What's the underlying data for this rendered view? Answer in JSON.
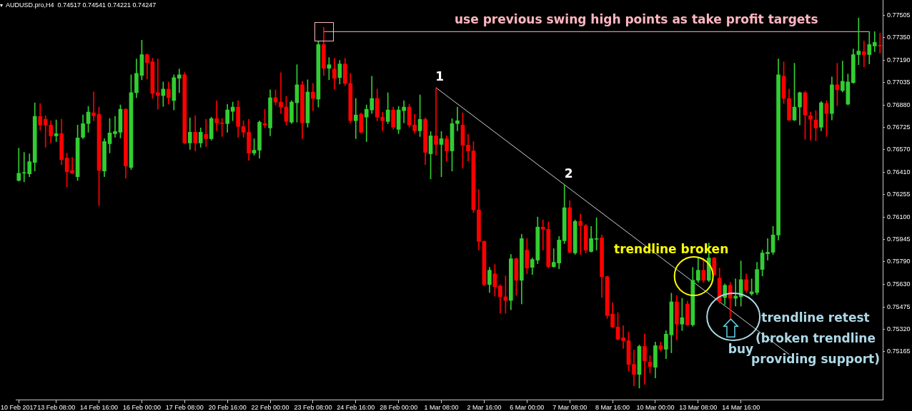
{
  "chart_data": {
    "type": "candlestick",
    "title": "AUDUSD.pro,H4  0.74517 0.74541 0.74221 0.74247",
    "categories": [
      "10 Feb 2017",
      null,
      null,
      null,
      null,
      null,
      null,
      "13 Feb 08:00",
      null,
      null,
      null,
      null,
      null,
      null,
      null,
      "14 Feb 16:00",
      null,
      null,
      null,
      null,
      null,
      null,
      null,
      "16 Feb 00:00",
      null,
      null,
      null,
      null,
      null,
      null,
      null,
      "17 Feb 08:00",
      null,
      null,
      null,
      null,
      null,
      null,
      null,
      "20 Feb 16:00",
      null,
      null,
      null,
      null,
      null,
      null,
      null,
      "22 Feb 00:00",
      null,
      null,
      null,
      null,
      null,
      null,
      null,
      "23 Feb 08:00",
      null,
      null,
      null,
      null,
      null,
      null,
      null,
      "24 Feb 16:00",
      null,
      null,
      null,
      null,
      null,
      null,
      null,
      "28 Feb 00:00",
      null,
      null,
      null,
      null,
      null,
      null,
      null,
      "1 Mar 08:00",
      null,
      null,
      null,
      null,
      null,
      null,
      null,
      "2 Mar 16:00",
      null,
      null,
      null,
      null,
      null,
      null,
      null,
      "6 Mar 00:00",
      null,
      null,
      null,
      null,
      null,
      null,
      null,
      "7 Mar 08:00",
      null,
      null,
      null,
      null,
      null,
      null,
      null,
      "8 Mar 16:00",
      null,
      null,
      null,
      null,
      null,
      null,
      null,
      "10 Mar 00:00",
      null,
      null,
      null,
      null,
      null,
      null,
      null,
      "13 Mar 08:00",
      null,
      null,
      null,
      null,
      null,
      null,
      null,
      "14 Mar 16:00",
      null,
      null,
      null,
      null,
      null,
      null,
      null,
      null,
      null,
      null,
      null,
      null,
      null,
      null,
      null,
      null,
      null,
      null,
      null,
      null,
      null,
      null,
      null,
      null,
      null,
      null
    ],
    "ohlc": [
      [
        0.76355,
        0.7658,
        0.7635,
        0.76405
      ],
      [
        0.76405,
        0.7655,
        0.76345,
        0.7641
      ],
      [
        0.764,
        0.7654,
        0.7638,
        0.76485
      ],
      [
        0.7648,
        0.76895,
        0.7642,
        0.768
      ],
      [
        0.768,
        0.7689,
        0.76705,
        0.7674
      ],
      [
        0.7678,
        0.76805,
        0.76585,
        0.7674
      ],
      [
        0.7674,
        0.7677,
        0.76615,
        0.76665
      ],
      [
        0.76665,
        0.76775,
        0.76625,
        0.7668
      ],
      [
        0.7668,
        0.7678,
        0.76465,
        0.765
      ],
      [
        0.7651,
        0.76545,
        0.7631,
        0.76415
      ],
      [
        0.76425,
        0.76515,
        0.764,
        0.76405
      ],
      [
        0.7638,
        0.7674,
        0.76355,
        0.7665
      ],
      [
        0.76655,
        0.7681,
        0.76645,
        0.7675
      ],
      [
        0.7675,
        0.7687,
        0.7669,
        0.7683
      ],
      [
        0.76825,
        0.7697,
        0.7677,
        0.76805
      ],
      [
        0.76815,
        0.76865,
        0.7618,
        0.76425
      ],
      [
        0.7642,
        0.76645,
        0.7638,
        0.76625
      ],
      [
        0.7661,
        0.76785,
        0.76545,
        0.76685
      ],
      [
        0.7668,
        0.768,
        0.76655,
        0.76695
      ],
      [
        0.7669,
        0.7688,
        0.7665,
        0.7685
      ],
      [
        0.7685,
        0.76855,
        0.7637,
        0.76455
      ],
      [
        0.76445,
        0.7709,
        0.7643,
        0.76965
      ],
      [
        0.76965,
        0.772,
        0.7693,
        0.771
      ],
      [
        0.77085,
        0.7733,
        0.77055,
        0.7723
      ],
      [
        0.7723,
        0.77235,
        0.7706,
        0.77175
      ],
      [
        0.7718,
        0.77205,
        0.76925,
        0.7696
      ],
      [
        0.76965,
        0.772,
        0.7685,
        0.76945
      ],
      [
        0.76945,
        0.7704,
        0.7687,
        0.7699
      ],
      [
        0.7699,
        0.7704,
        0.76885,
        0.7693
      ],
      [
        0.7691,
        0.7709,
        0.76845,
        0.7707
      ],
      [
        0.77065,
        0.7713,
        0.76965,
        0.7709
      ],
      [
        0.7709,
        0.77105,
        0.7661,
        0.76615
      ],
      [
        0.76615,
        0.7679,
        0.7657,
        0.7669
      ],
      [
        0.7669,
        0.76805,
        0.7656,
        0.76615
      ],
      [
        0.76615,
        0.7672,
        0.76585,
        0.7669
      ],
      [
        0.76675,
        0.7678,
        0.7659,
        0.76645
      ],
      [
        0.76645,
        0.76795,
        0.76635,
        0.76785
      ],
      [
        0.76785,
        0.7691,
        0.767,
        0.76755
      ],
      [
        0.76755,
        0.76785,
        0.7666,
        0.7675
      ],
      [
        0.7675,
        0.76885,
        0.7669,
        0.76845
      ],
      [
        0.76835,
        0.769,
        0.7677,
        0.76865
      ],
      [
        0.76865,
        0.7691,
        0.76655,
        0.7673
      ],
      [
        0.7673,
        0.7677,
        0.76655,
        0.7669
      ],
      [
        0.7669,
        0.7678,
        0.76495,
        0.76545
      ],
      [
        0.76545,
        0.76645,
        0.7653,
        0.76565
      ],
      [
        0.76565,
        0.7677,
        0.7651,
        0.7676
      ],
      [
        0.7675,
        0.7685,
        0.7672,
        0.7674
      ],
      [
        0.7672,
        0.76985,
        0.76665,
        0.7693
      ],
      [
        0.7693,
        0.76985,
        0.7688,
        0.769
      ],
      [
        0.769,
        0.77105,
        0.7682,
        0.76865
      ],
      [
        0.76865,
        0.7694,
        0.7674,
        0.76765
      ],
      [
        0.7676,
        0.7691,
        0.7675,
        0.769
      ],
      [
        0.76895,
        0.7716,
        0.7676,
        0.7702
      ],
      [
        0.7702,
        0.77045,
        0.76645,
        0.76755
      ],
      [
        0.76755,
        0.77055,
        0.76725,
        0.7697
      ],
      [
        0.7697,
        0.7703,
        0.7684,
        0.76925
      ],
      [
        0.7692,
        0.77325,
        0.76865,
        0.773
      ],
      [
        0.773,
        0.7742,
        0.77085,
        0.77135
      ],
      [
        0.77135,
        0.7721,
        0.77055,
        0.7716
      ],
      [
        0.7713,
        0.77205,
        0.7699,
        0.77065
      ],
      [
        0.7707,
        0.7719,
        0.77025,
        0.77165
      ],
      [
        0.77165,
        0.77205,
        0.77015,
        0.7703
      ],
      [
        0.7703,
        0.771,
        0.76755,
        0.7677
      ],
      [
        0.7677,
        0.76925,
        0.76645,
        0.7681
      ],
      [
        0.76815,
        0.76825,
        0.76685,
        0.7669
      ],
      [
        0.76795,
        0.7688,
        0.76625,
        0.7685
      ],
      [
        0.76845,
        0.7708,
        0.7682,
        0.76925
      ],
      [
        0.76925,
        0.7699,
        0.7677,
        0.76795
      ],
      [
        0.76795,
        0.7683,
        0.767,
        0.7677
      ],
      [
        0.76765,
        0.76965,
        0.7675,
        0.76845
      ],
      [
        0.76845,
        0.76865,
        0.7671,
        0.76725
      ],
      [
        0.7671,
        0.7687,
        0.7668,
        0.76845
      ],
      [
        0.7684,
        0.7691,
        0.76755,
        0.76865
      ],
      [
        0.76865,
        0.76885,
        0.76725,
        0.7674
      ],
      [
        0.7674,
        0.76815,
        0.76685,
        0.767
      ],
      [
        0.767,
        0.7695,
        0.7666,
        0.7678
      ],
      [
        0.7678,
        0.7679,
        0.76465,
        0.7655
      ],
      [
        0.7654,
        0.76695,
        0.76365,
        0.76665
      ],
      [
        0.76665,
        0.77,
        0.7653,
        0.76605
      ],
      [
        0.76605,
        0.76695,
        0.7638,
        0.76645
      ],
      [
        0.76645,
        0.76665,
        0.7649,
        0.7656
      ],
      [
        0.7656,
        0.76785,
        0.7642,
        0.7675
      ],
      [
        0.7675,
        0.76865,
        0.767,
        0.7677
      ],
      [
        0.7674,
        0.76825,
        0.7644,
        0.766
      ],
      [
        0.766,
        0.76675,
        0.7649,
        0.7656
      ],
      [
        0.7656,
        0.76625,
        0.7613,
        0.7615
      ],
      [
        0.7615,
        0.7629,
        0.7587,
        0.7593
      ],
      [
        0.7593,
        0.75935,
        0.7562,
        0.7563
      ],
      [
        0.7563,
        0.7575,
        0.75575,
        0.7573
      ],
      [
        0.75705,
        0.7577,
        0.7555,
        0.75615
      ],
      [
        0.7562,
        0.7563,
        0.7543,
        0.75545
      ],
      [
        0.75545,
        0.7569,
        0.7543,
        0.7552
      ],
      [
        0.7552,
        0.7584,
        0.75455,
        0.7581
      ],
      [
        0.7581,
        0.75815,
        0.75555,
        0.7566
      ],
      [
        0.7566,
        0.7598,
        0.75495,
        0.7595
      ],
      [
        0.7587,
        0.7595,
        0.75705,
        0.75745
      ],
      [
        0.7575,
        0.75815,
        0.757,
        0.75805
      ],
      [
        0.758,
        0.761,
        0.75775,
        0.7603
      ],
      [
        0.7603,
        0.7608,
        0.7587,
        0.76015
      ],
      [
        0.76015,
        0.76065,
        0.75745,
        0.75755
      ],
      [
        0.75755,
        0.7588,
        0.7575,
        0.75785
      ],
      [
        0.7578,
        0.75965,
        0.7574,
        0.7594
      ],
      [
        0.75935,
        0.76325,
        0.75915,
        0.76165
      ],
      [
        0.76165,
        0.76215,
        0.7585,
        0.75855
      ],
      [
        0.7585,
        0.7608,
        0.7584,
        0.7607
      ],
      [
        0.7607,
        0.7612,
        0.7584,
        0.7604
      ],
      [
        0.7604,
        0.7605,
        0.7585,
        0.7587
      ],
      [
        0.7586,
        0.76035,
        0.75855,
        0.7595
      ],
      [
        0.75945,
        0.76095,
        0.7587,
        0.7595
      ],
      [
        0.75955,
        0.75975,
        0.7554,
        0.75685
      ],
      [
        0.75685,
        0.7569,
        0.75395,
        0.75415
      ],
      [
        0.75425,
        0.75505,
        0.7533,
        0.75335
      ],
      [
        0.75335,
        0.75435,
        0.75245,
        0.7525
      ],
      [
        0.7526,
        0.75345,
        0.75185,
        0.7524
      ],
      [
        0.7524,
        0.753,
        0.7503,
        0.75075
      ],
      [
        0.75075,
        0.75175,
        0.74925,
        0.75005
      ],
      [
        0.75005,
        0.7521,
        0.7491,
        0.752
      ],
      [
        0.752,
        0.75285,
        0.74935,
        0.751
      ],
      [
        0.7509,
        0.75135,
        0.75015,
        0.7506
      ],
      [
        0.75055,
        0.7523,
        0.7498,
        0.75205
      ],
      [
        0.75205,
        0.7523,
        0.7517,
        0.7518
      ],
      [
        0.7518,
        0.7531,
        0.75115,
        0.75285
      ],
      [
        0.7528,
        0.7557,
        0.75155,
        0.7551
      ],
      [
        0.7551,
        0.75555,
        0.75245,
        0.75355
      ],
      [
        0.75355,
        0.75535,
        0.7531,
        0.754
      ],
      [
        0.75495,
        0.75515,
        0.75345,
        0.7535
      ],
      [
        0.7535,
        0.7575,
        0.7534,
        0.7566
      ],
      [
        0.7566,
        0.7582,
        0.75645,
        0.7573
      ],
      [
        0.7573,
        0.75815,
        0.75645,
        0.7566
      ],
      [
        0.7566,
        0.7592,
        0.7565,
        0.75815
      ],
      [
        0.75815,
        0.7582,
        0.75695,
        0.757
      ],
      [
        0.75675,
        0.75745,
        0.755,
        0.75515
      ],
      [
        0.7554,
        0.75635,
        0.7549,
        0.75625
      ],
      [
        0.75625,
        0.75645,
        0.75395,
        0.75535
      ],
      [
        0.75535,
        0.7567,
        0.7548,
        0.7555
      ],
      [
        0.75545,
        0.75795,
        0.7548,
        0.75665
      ],
      [
        0.75665,
        0.75705,
        0.75575,
        0.7559
      ],
      [
        0.75565,
        0.7567,
        0.75555,
        0.7558
      ],
      [
        0.75575,
        0.75785,
        0.7556,
        0.75735
      ],
      [
        0.75735,
        0.7587,
        0.7569,
        0.7585
      ],
      [
        0.75845,
        0.7595,
        0.758,
        0.75855
      ],
      [
        0.75855,
        0.76035,
        0.7584,
        0.75975
      ],
      [
        0.75975,
        0.772,
        0.7594,
        0.7709
      ],
      [
        0.7708,
        0.7718,
        0.7689,
        0.76925
      ],
      [
        0.76925,
        0.7699,
        0.7677,
        0.76775
      ],
      [
        0.76775,
        0.7717,
        0.7677,
        0.76865
      ],
      [
        0.76865,
        0.7697,
        0.7674,
        0.76965
      ],
      [
        0.76965,
        0.76975,
        0.7664,
        0.7681
      ],
      [
        0.76805,
        0.7683,
        0.76635,
        0.7678
      ],
      [
        0.76775,
        0.7684,
        0.7663,
        0.7672
      ],
      [
        0.76725,
        0.76905,
        0.767,
        0.76895
      ],
      [
        0.7689,
        0.7691,
        0.7666,
        0.7682
      ],
      [
        0.7682,
        0.77075,
        0.76775,
        0.7702
      ],
      [
        0.7702,
        0.7717,
        0.76875,
        0.76985
      ],
      [
        0.7698,
        0.77185,
        0.7697,
        0.77045
      ],
      [
        0.76885,
        0.77095,
        0.7688,
        0.7704
      ],
      [
        0.77035,
        0.7727,
        0.7703,
        0.7723
      ],
      [
        0.7723,
        0.77485,
        0.7716,
        0.77255
      ],
      [
        0.7725,
        0.77325,
        0.77145,
        0.7723
      ],
      [
        0.7723,
        0.7739,
        0.77165,
        0.773
      ],
      [
        0.7729,
        0.7739,
        0.7725,
        0.77315
      ],
      [
        0.77295,
        0.7738,
        0.7724,
        0.7729
      ]
    ],
    "colors": [
      "#32cd32",
      "#32cd32",
      "#32cd32",
      "#32cd32",
      "#ff0000",
      "#ff0000",
      "#ff0000",
      "#32cd32",
      "#ff0000",
      "#ff0000",
      "#ff0000",
      "#32cd32",
      "#32cd32",
      "#32cd32",
      "#ff0000",
      "#ff0000",
      "#32cd32",
      "#32cd32",
      "#32cd32",
      "#32cd32",
      "#ff0000",
      "#32cd32",
      "#32cd32",
      "#32cd32",
      "#ff0000",
      "#ff0000",
      "#ff0000",
      "#32cd32",
      "#ff0000",
      "#32cd32",
      "#32cd32",
      "#ff0000",
      "#32cd32",
      "#ff0000",
      "#32cd32",
      "#ff0000",
      "#32cd32",
      "#ff0000",
      "#ff0000",
      "#32cd32",
      "#32cd32",
      "#ff0000",
      "#ff0000",
      "#ff0000",
      "#32cd32",
      "#32cd32",
      "#ff0000",
      "#32cd32",
      "#ff0000",
      "#ff0000",
      "#ff0000",
      "#32cd32",
      "#32cd32",
      "#ff0000",
      "#32cd32",
      "#ff0000",
      "#32cd32",
      "#ff0000",
      "#32cd32",
      "#ff0000",
      "#32cd32",
      "#ff0000",
      "#ff0000",
      "#32cd32",
      "#ff0000",
      "#32cd32",
      "#32cd32",
      "#ff0000",
      "#ff0000",
      "#32cd32",
      "#ff0000",
      "#32cd32",
      "#32cd32",
      "#ff0000",
      "#ff0000",
      "#32cd32",
      "#ff0000",
      "#32cd32",
      "#ff0000",
      "#32cd32",
      "#ff0000",
      "#32cd32",
      "#32cd32",
      "#ff0000",
      "#ff0000",
      "#ff0000",
      "#ff0000",
      "#ff0000",
      "#32cd32",
      "#ff0000",
      "#ff0000",
      "#ff0000",
      "#32cd32",
      "#ff0000",
      "#32cd32",
      "#ff0000",
      "#32cd32",
      "#32cd32",
      "#ff0000",
      "#ff0000",
      "#32cd32",
      "#32cd32",
      "#32cd32",
      "#ff0000",
      "#32cd32",
      "#ff0000",
      "#ff0000",
      "#32cd32",
      "#32cd32",
      "#ff0000",
      "#ff0000",
      "#ff0000",
      "#ff0000",
      "#ff0000",
      "#ff0000",
      "#ff0000",
      "#32cd32",
      "#ff0000",
      "#ff0000",
      "#32cd32",
      "#ff0000",
      "#32cd32",
      "#32cd32",
      "#ff0000",
      "#32cd32",
      "#ff0000",
      "#32cd32",
      "#32cd32",
      "#ff0000",
      "#32cd32",
      "#ff0000",
      "#ff0000",
      "#32cd32",
      "#ff0000",
      "#32cd32",
      "#32cd32",
      "#ff0000",
      "#32cd32",
      "#32cd32",
      "#32cd32",
      "#32cd32",
      "#32cd32",
      "#32cd32",
      "#ff0000",
      "#ff0000",
      "#32cd32",
      "#32cd32",
      "#ff0000",
      "#ff0000",
      "#ff0000",
      "#32cd32",
      "#ff0000",
      "#32cd32",
      "#ff0000",
      "#32cd32",
      "#32cd32",
      "#32cd32",
      "#32cd32",
      "#ff0000",
      "#32cd32",
      "#32cd32",
      "#ff0000"
    ],
    "series": [
      {
        "type": "line",
        "color": "#ffb6c1",
        "values": [
          null,
          null,
          null,
          null,
          null,
          null,
          null,
          null,
          null,
          null,
          null,
          null,
          null,
          null,
          null,
          null,
          null,
          null,
          null,
          null,
          null,
          null,
          null,
          null,
          null,
          null,
          null,
          null,
          null,
          null,
          null,
          null,
          null,
          null,
          null,
          null,
          null,
          null,
          null,
          null,
          null,
          null,
          null,
          null,
          null,
          null,
          null,
          null,
          null,
          null,
          null,
          null,
          null,
          null,
          null,
          null,
          null,
          0.7739,
          null,
          null,
          null,
          null,
          null,
          null,
          null,
          null,
          null,
          null,
          null,
          null,
          null,
          null,
          null,
          null,
          null,
          null,
          null,
          null,
          null,
          null,
          null,
          null,
          null,
          null,
          null,
          null,
          null,
          null,
          null,
          null,
          null,
          null,
          null,
          null,
          null,
          null,
          null,
          null,
          null,
          null,
          null,
          null,
          null,
          null,
          null,
          null,
          null,
          null,
          null,
          null,
          null,
          null,
          null,
          null,
          null,
          null,
          null,
          null,
          null,
          null,
          null,
          null,
          null,
          null,
          null,
          null,
          null,
          null,
          null,
          null,
          null,
          null,
          null,
          null,
          null,
          null,
          null,
          null,
          null,
          null,
          null,
          null,
          null,
          null,
          null,
          null,
          null,
          null,
          null,
          null,
          null,
          null,
          null,
          null,
          null,
          null,
          null,
          null,
          null,
          0.7739,
          null,
          null
        ]
      },
      {
        "type": "line",
        "color": "#d0d0d0",
        "values": [
          null,
          null,
          null,
          null,
          null,
          null,
          null,
          null,
          null,
          null,
          null,
          null,
          null,
          null,
          null,
          null,
          null,
          null,
          null,
          null,
          null,
          null,
          null,
          null,
          null,
          null,
          null,
          null,
          null,
          null,
          null,
          null,
          null,
          null,
          null,
          null,
          null,
          null,
          null,
          null,
          null,
          null,
          null,
          null,
          null,
          null,
          null,
          null,
          null,
          null,
          null,
          null,
          null,
          null,
          null,
          null,
          null,
          null,
          null,
          null,
          null,
          null,
          null,
          null,
          null,
          null,
          null,
          null,
          null,
          null,
          null,
          null,
          null,
          null,
          null,
          null,
          null,
          null,
          0.77,
          null,
          null,
          null,
          null,
          null,
          null,
          null,
          null,
          null,
          null,
          null,
          null,
          null,
          null,
          null,
          null,
          null,
          null,
          null,
          null,
          null,
          null,
          null,
          0.76325,
          null,
          null,
          null,
          null,
          null,
          null,
          null,
          null,
          null,
          null,
          null,
          null,
          null,
          null,
          null,
          null,
          null,
          null,
          null,
          null,
          null,
          null,
          null,
          null,
          null,
          null,
          null,
          null,
          null,
          null,
          null,
          null,
          null,
          null,
          null,
          null,
          null,
          null,
          null,
          null,
          null,
          0.75145,
          null,
          null,
          null,
          null,
          null,
          null,
          null,
          null,
          null,
          null,
          null,
          null,
          null,
          null,
          null,
          null,
          null
        ]
      }
    ],
    "ylim": [
      0.7483,
      0.7761
    ],
    "yticks": [
      0.77505,
      {
        "value": 0.7735,
        "label": "0.77350"
      },
      {
        "value": 0.7719,
        "label": "0.77190"
      },
      0.77035,
      {
        "value": 0.7688,
        "label": "0.76880"
      },
      0.76725,
      {
        "value": 0.7657,
        "label": "0.76570"
      },
      {
        "value": 0.7641,
        "label": "0.76410"
      },
      0.76255,
      {
        "value": 0.761,
        "label": "0.76100"
      },
      0.75945,
      {
        "value": 0.7579,
        "label": "0.75790"
      },
      {
        "value": 0.7563,
        "label": "0.75630"
      },
      0.75475,
      {
        "value": 0.7532,
        "label": "0.75320"
      },
      0.75165
    ],
    "grid": false,
    "legend": false,
    "annotations": [
      "use previous swing high points as take profit targets",
      "1",
      "2",
      "trendline broken",
      "trendline retest (broken trendline providing support)",
      "buy"
    ]
  }
}
